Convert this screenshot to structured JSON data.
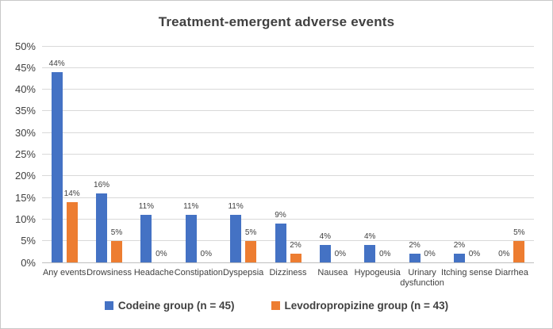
{
  "chart_data": {
    "type": "bar",
    "title": "Treatment-emergent adverse events",
    "categories": [
      "Any events",
      "Drowsiness",
      "Headache",
      "Constipation",
      "Dyspepsia",
      "Dizziness",
      "Nausea",
      "Hypogeusia",
      "Urinary dysfunction",
      "Itching sense",
      "Diarrhea"
    ],
    "series": [
      {
        "name": "Codeine group (n = 45)",
        "color": "#4472C4",
        "values": [
          44,
          16,
          11,
          11,
          11,
          9,
          4,
          4,
          2,
          2,
          0
        ],
        "labels": [
          "44%",
          "16%",
          "11%",
          "11%",
          "11%",
          "9%",
          "4%",
          "4%",
          "2%",
          "2%",
          "0%"
        ]
      },
      {
        "name": "Levodropropizine group (n = 43)",
        "color": "#ED7D31",
        "values": [
          14,
          5,
          0,
          0,
          5,
          2,
          0,
          0,
          0,
          0,
          5
        ],
        "labels": [
          "14%",
          "5%",
          "0%",
          "0%",
          "5%",
          "2%",
          "0%",
          "0%",
          "0%",
          "0%",
          "5%"
        ]
      }
    ],
    "y_axis": {
      "min": 0,
      "max": 50,
      "step": 5,
      "ticks": [
        0,
        5,
        10,
        15,
        20,
        25,
        30,
        35,
        40,
        45,
        50
      ],
      "tick_labels": [
        "0%",
        "5%",
        "10%",
        "15%",
        "20%",
        "25%",
        "30%",
        "35%",
        "40%",
        "45%",
        "50%"
      ]
    },
    "grid": true,
    "legend_position": "bottom",
    "colors": {
      "grid": "#d9d9d9",
      "axis": "#bfbfbf",
      "text": "#404040",
      "border": "#c8c8c8",
      "background": "#ffffff"
    }
  }
}
